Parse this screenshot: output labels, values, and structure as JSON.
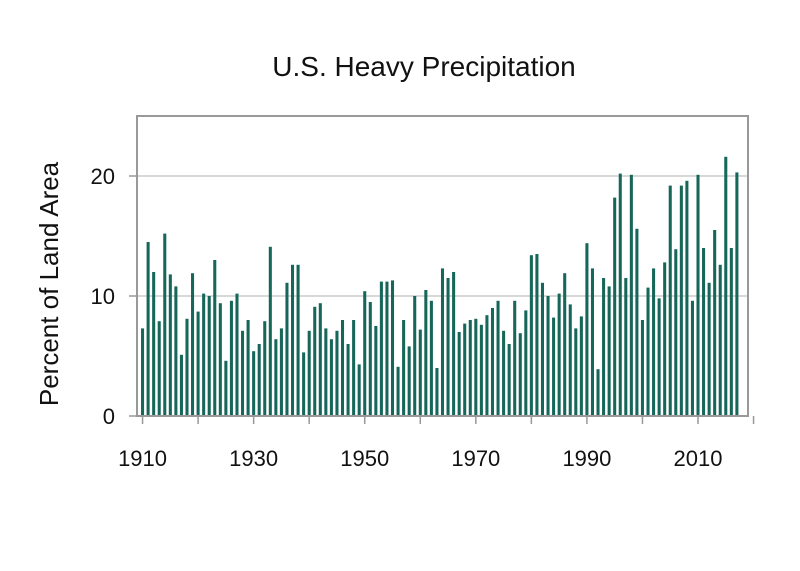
{
  "colors": {
    "bar": "#16675a",
    "frame": "#999999",
    "grid": "#cccccc",
    "text": "#111111"
  },
  "chart_data": {
    "type": "bar",
    "title": "U.S. Heavy Precipitation",
    "xlabel": "",
    "ylabel": "Percent of Land Area",
    "x_start": 1910,
    "xlim": [
      1909,
      2019
    ],
    "ylim": [
      0,
      25
    ],
    "x_ticks": [
      1910,
      1920,
      1930,
      1940,
      1950,
      1960,
      1970,
      1980,
      1990,
      2000,
      2010,
      2020
    ],
    "x_tick_labels": [
      "1910",
      "",
      "1930",
      "",
      "1950",
      "",
      "1970",
      "",
      "1990",
      "",
      "2010",
      ""
    ],
    "y_ticks": [
      0,
      10,
      20
    ],
    "y_tick_labels": [
      "0",
      "10",
      "20"
    ],
    "grid": true,
    "grid_axis": "y",
    "legend": "none",
    "x": [
      1910,
      1911,
      1912,
      1913,
      1914,
      1915,
      1916,
      1917,
      1918,
      1919,
      1920,
      1921,
      1922,
      1923,
      1924,
      1925,
      1926,
      1927,
      1928,
      1929,
      1930,
      1931,
      1932,
      1933,
      1934,
      1935,
      1936,
      1937,
      1938,
      1939,
      1940,
      1941,
      1942,
      1943,
      1944,
      1945,
      1946,
      1947,
      1948,
      1949,
      1950,
      1951,
      1952,
      1953,
      1954,
      1955,
      1956,
      1957,
      1958,
      1959,
      1960,
      1961,
      1962,
      1963,
      1964,
      1965,
      1966,
      1967,
      1968,
      1969,
      1970,
      1971,
      1972,
      1973,
      1974,
      1975,
      1976,
      1977,
      1978,
      1979,
      1980,
      1981,
      1982,
      1983,
      1984,
      1985,
      1986,
      1987,
      1988,
      1989,
      1990,
      1991,
      1992,
      1993,
      1994,
      1995,
      1996,
      1997,
      1998,
      1999,
      2000,
      2001,
      2002,
      2003,
      2004,
      2005,
      2006,
      2007,
      2008,
      2009,
      2010,
      2011,
      2012,
      2013,
      2014,
      2015,
      2016,
      2017
    ],
    "values": [
      7.3,
      14.5,
      12.0,
      7.9,
      15.2,
      11.8,
      10.8,
      5.1,
      8.1,
      11.9,
      8.7,
      10.2,
      10.0,
      13.0,
      9.4,
      4.6,
      9.6,
      10.2,
      7.1,
      8.0,
      5.4,
      6.0,
      7.9,
      14.1,
      6.4,
      7.3,
      11.1,
      12.6,
      12.6,
      5.3,
      7.1,
      9.1,
      9.4,
      7.3,
      6.4,
      7.1,
      8.0,
      6.0,
      8.0,
      4.3,
      10.4,
      9.5,
      7.5,
      11.2,
      11.2,
      11.3,
      4.1,
      8.0,
      5.8,
      10.0,
      7.2,
      10.5,
      9.6,
      4.0,
      12.3,
      11.5,
      12.0,
      7.0,
      7.7,
      8.0,
      8.1,
      7.6,
      8.4,
      9.0,
      9.6,
      7.1,
      6.0,
      9.6,
      6.9,
      8.8,
      13.4,
      13.5,
      11.1,
      10.0,
      8.2,
      10.2,
      11.9,
      9.3,
      7.3,
      8.3,
      14.4,
      12.3,
      3.9,
      11.5,
      10.8,
      18.2,
      20.2,
      11.5,
      20.1,
      15.6,
      8.0,
      10.7,
      12.3,
      9.8,
      12.8,
      19.2,
      13.9,
      19.2,
      19.6,
      9.6,
      20.1,
      14.0,
      11.1,
      15.5,
      12.6,
      21.6,
      14.0,
      20.3
    ]
  }
}
